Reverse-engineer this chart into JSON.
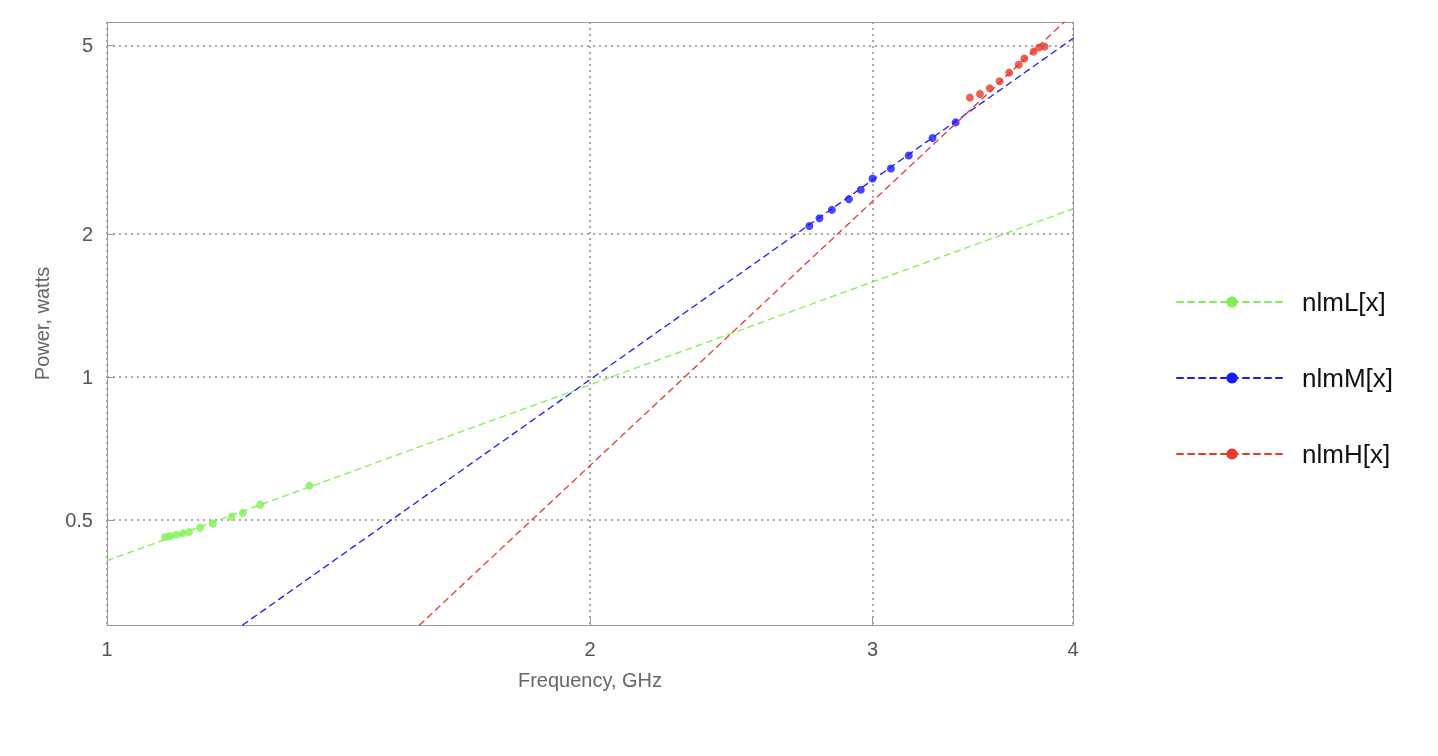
{
  "chart_data": {
    "type": "scatter",
    "xlabel": "Frequency, GHz",
    "ylabel": "Power, watts",
    "log": "xy",
    "xlim": [
      1,
      4
    ],
    "ylim": [
      0.3,
      5.6
    ],
    "xticks": [
      1,
      2,
      3,
      4
    ],
    "yticks": [
      0.5,
      1,
      2,
      5
    ],
    "grid": true,
    "legend": "right",
    "marker": "circle",
    "series": [
      {
        "color": "#7cf252",
        "x": [
          1.087,
          1.095,
          1.105,
          1.115,
          1.125,
          1.143,
          1.164,
          1.196,
          1.215,
          1.246,
          1.337
        ],
        "values": [
          0.46,
          0.462,
          0.465,
          0.468,
          0.471,
          0.481,
          0.491,
          0.507,
          0.517,
          0.538,
          0.59
        ]
      },
      {
        "color": "#1a1aff",
        "x": [
          2.74,
          2.78,
          2.83,
          2.9,
          2.95,
          3.0,
          3.08,
          3.16,
          3.27,
          3.38
        ],
        "values": [
          2.08,
          2.16,
          2.25,
          2.37,
          2.48,
          2.62,
          2.75,
          2.93,
          3.19,
          3.44
        ]
      },
      {
        "color": "#e8392a",
        "x": [
          3.45,
          3.5,
          3.55,
          3.6,
          3.65,
          3.7,
          3.73,
          3.78,
          3.81,
          3.84
        ],
        "values": [
          3.88,
          3.95,
          4.06,
          4.2,
          4.38,
          4.55,
          4.69,
          4.85,
          4.95,
          4.97
        ]
      },
      {
        "type": "line",
        "name": "nlmL[x]",
        "color": "#7cf252",
        "line_style": "dashed",
        "marker": "none",
        "x": [
          1,
          4
        ],
        "values": [
          0.41,
          2.26
        ]
      },
      {
        "type": "line",
        "name": "nlmM[x]",
        "color": "#1a1aff",
        "line_style": "dashed",
        "marker": "none",
        "x": [
          1.215,
          4
        ],
        "values": [
          0.3,
          5.17
        ]
      },
      {
        "type": "line",
        "name": "nlmH[x]",
        "color": "#e8392a",
        "line_style": "dashed",
        "marker": "none",
        "x": [
          1.566,
          3.95
        ],
        "values": [
          0.3,
          5.6
        ]
      }
    ]
  }
}
